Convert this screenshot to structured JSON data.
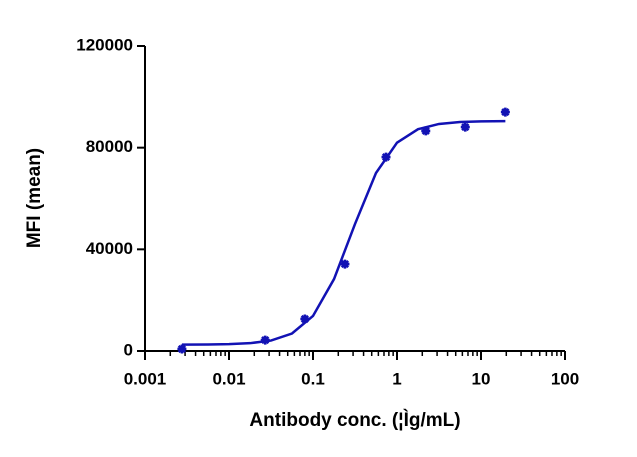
{
  "chart_data": {
    "type": "scatter",
    "x_label": "Antibody conc. (¦Ìg/mL)",
    "y_label": "MFI (mean)",
    "xscale": "log",
    "xlim": [
      0.001,
      100
    ],
    "xticks": [
      0.001,
      0.01,
      0.1,
      1,
      10,
      100
    ],
    "ylim": [
      0,
      120000
    ],
    "yticks": [
      0,
      40000,
      80000,
      120000
    ],
    "series": [
      {
        "style": "marker",
        "color": "#1212b4",
        "x": [
          0.00275,
          0.027,
          0.08,
          0.24,
          0.74,
          2.2,
          6.5,
          19.5
        ],
        "values": [
          800,
          4300,
          12600,
          34200,
          76300,
          86600,
          88100,
          94000
        ]
      },
      {
        "style": "line",
        "color": "#1212b4",
        "x": [
          0.00275,
          0.00562,
          0.01,
          0.0178,
          0.0316,
          0.0562,
          0.1,
          0.178,
          0.316,
          0.562,
          1,
          1.78,
          3.16,
          5.62,
          10,
          19.5
        ],
        "values": [
          2520,
          2573,
          2706,
          3076,
          4100,
          6878,
          13797,
          28306,
          49937,
          70036,
          81951,
          87262,
          89323,
          90078,
          90350,
          90456
        ]
      }
    ]
  }
}
